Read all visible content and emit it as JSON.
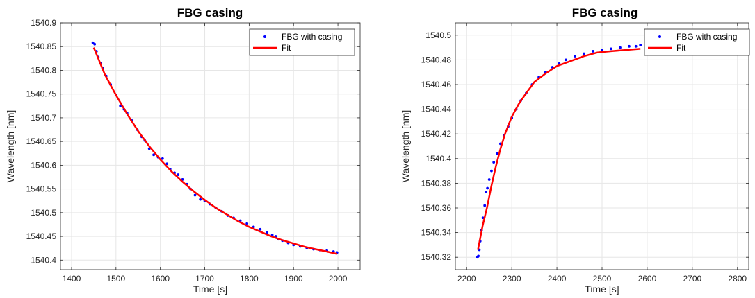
{
  "chart_data": [
    {
      "type": "scatter",
      "title": "FBG casing",
      "xlabel": "Time [s]",
      "ylabel": "Wavelength [nm]",
      "xlim": [
        1375,
        2050
      ],
      "ylim": [
        1540.38,
        1540.9
      ],
      "xticks": [
        1400,
        1500,
        1600,
        1700,
        1800,
        1900,
        2000
      ],
      "yticks": [
        1540.4,
        1540.45,
        1540.5,
        1540.55,
        1540.6,
        1540.65,
        1540.7,
        1540.75,
        1540.8,
        1540.85,
        1540.9
      ],
      "ytick_labels": [
        "1540.4",
        "1540.45",
        "1540.5",
        "1540.55",
        "1540.6",
        "1540.65",
        "1540.7",
        "1540.75",
        "1540.8",
        "1540.85",
        "1540.9"
      ],
      "grid": true,
      "legend_position": "top-right",
      "series": [
        {
          "name": "FBG with casing",
          "kind": "points",
          "color": "#0000ff",
          "x": [
            1448,
            1452,
            1456,
            1460,
            1465,
            1470,
            1478,
            1488,
            1500,
            1510,
            1518,
            1525,
            1535,
            1548,
            1558,
            1565,
            1575,
            1585,
            1595,
            1605,
            1615,
            1622,
            1632,
            1640,
            1650,
            1660,
            1668,
            1678,
            1690,
            1700,
            1712,
            1725,
            1738,
            1752,
            1765,
            1780,
            1795,
            1810,
            1825,
            1840,
            1852,
            1860,
            1866,
            1875,
            1888,
            1900,
            1915,
            1930,
            1945,
            1960,
            1975,
            1990,
            1998
          ],
          "y": [
            1540.858,
            1540.855,
            1540.84,
            1540.828,
            1540.815,
            1540.805,
            1540.788,
            1540.77,
            1540.748,
            1540.725,
            1540.718,
            1540.71,
            1540.695,
            1540.675,
            1540.66,
            1540.652,
            1540.635,
            1540.622,
            1540.617,
            1540.614,
            1540.603,
            1540.592,
            1540.584,
            1540.58,
            1540.57,
            1540.56,
            1540.55,
            1540.537,
            1540.528,
            1540.525,
            1540.518,
            1540.51,
            1540.503,
            1540.494,
            1540.489,
            1540.483,
            1540.477,
            1540.47,
            1540.465,
            1540.458,
            1540.453,
            1540.45,
            1540.444,
            1540.441,
            1540.436,
            1540.432,
            1540.429,
            1540.425,
            1540.423,
            1540.421,
            1540.42,
            1540.418,
            1540.416
          ]
        },
        {
          "name": "Fit",
          "kind": "line",
          "color": "#ff0000",
          "x": [
            1450,
            1475,
            1500,
            1525,
            1550,
            1575,
            1600,
            1625,
            1650,
            1675,
            1700,
            1725,
            1750,
            1775,
            1800,
            1825,
            1850,
            1875,
            1900,
            1925,
            1950,
            1975,
            1998
          ],
          "y": [
            1540.848,
            1540.791,
            1540.748,
            1540.708,
            1540.672,
            1540.64,
            1540.612,
            1540.587,
            1540.565,
            1540.545,
            1540.527,
            1540.51,
            1540.496,
            1540.482,
            1540.47,
            1540.46,
            1540.45,
            1540.442,
            1540.435,
            1540.428,
            1540.423,
            1540.418,
            1540.413
          ]
        }
      ]
    },
    {
      "type": "scatter",
      "title": "FBG casing",
      "xlabel": "Time [s]",
      "ylabel": "Wavelength [nm]",
      "xlim": [
        2175,
        2825
      ],
      "ylim": [
        1540.31,
        1540.51
      ],
      "xticks": [
        2200,
        2300,
        2400,
        2500,
        2600,
        2700,
        2800
      ],
      "yticks": [
        1540.32,
        1540.34,
        1540.36,
        1540.38,
        1540.4,
        1540.42,
        1540.44,
        1540.46,
        1540.48,
        1540.5
      ],
      "ytick_labels": [
        "1540.32",
        "1540.34",
        "1540.36",
        "1540.38",
        "1540.4",
        "1540.42",
        "1540.44",
        "1540.46",
        "1540.48",
        "1540.5"
      ],
      "grid": true,
      "legend_position": "top-right",
      "series": [
        {
          "name": "FBG with casing",
          "kind": "points",
          "color": "#0000ff",
          "x": [
            2224,
            2226,
            2228,
            2230,
            2233,
            2236,
            2240,
            2243,
            2246,
            2250,
            2255,
            2260,
            2268,
            2275,
            2283,
            2292,
            2300,
            2310,
            2320,
            2332,
            2345,
            2360,
            2375,
            2390,
            2405,
            2420,
            2440,
            2460,
            2480,
            2500,
            2520,
            2540,
            2560,
            2575,
            2585
          ],
          "y": [
            1540.32,
            1540.321,
            1540.326,
            1540.333,
            1540.342,
            1540.352,
            1540.362,
            1540.373,
            1540.376,
            1540.383,
            1540.39,
            1540.397,
            1540.404,
            1540.412,
            1540.419,
            1540.426,
            1540.433,
            1540.44,
            1540.447,
            1540.453,
            1540.46,
            1540.466,
            1540.47,
            1540.474,
            1540.477,
            1540.48,
            1540.483,
            1540.485,
            1540.487,
            1540.488,
            1540.489,
            1540.49,
            1540.491,
            1540.491,
            1540.492
          ]
        },
        {
          "name": "Fit",
          "kind": "line",
          "color": "#ff0000",
          "x": [
            2225,
            2235,
            2245,
            2255,
            2265,
            2275,
            2285,
            2300,
            2315,
            2330,
            2350,
            2375,
            2400,
            2430,
            2460,
            2490,
            2520,
            2550,
            2585
          ],
          "y": [
            1540.326,
            1540.345,
            1540.36,
            1540.378,
            1540.394,
            1540.408,
            1540.42,
            1540.434,
            1540.444,
            1540.452,
            1540.462,
            1540.469,
            1540.475,
            1540.479,
            1540.483,
            1540.486,
            1540.487,
            1540.488,
            1540.489
          ]
        }
      ]
    }
  ]
}
